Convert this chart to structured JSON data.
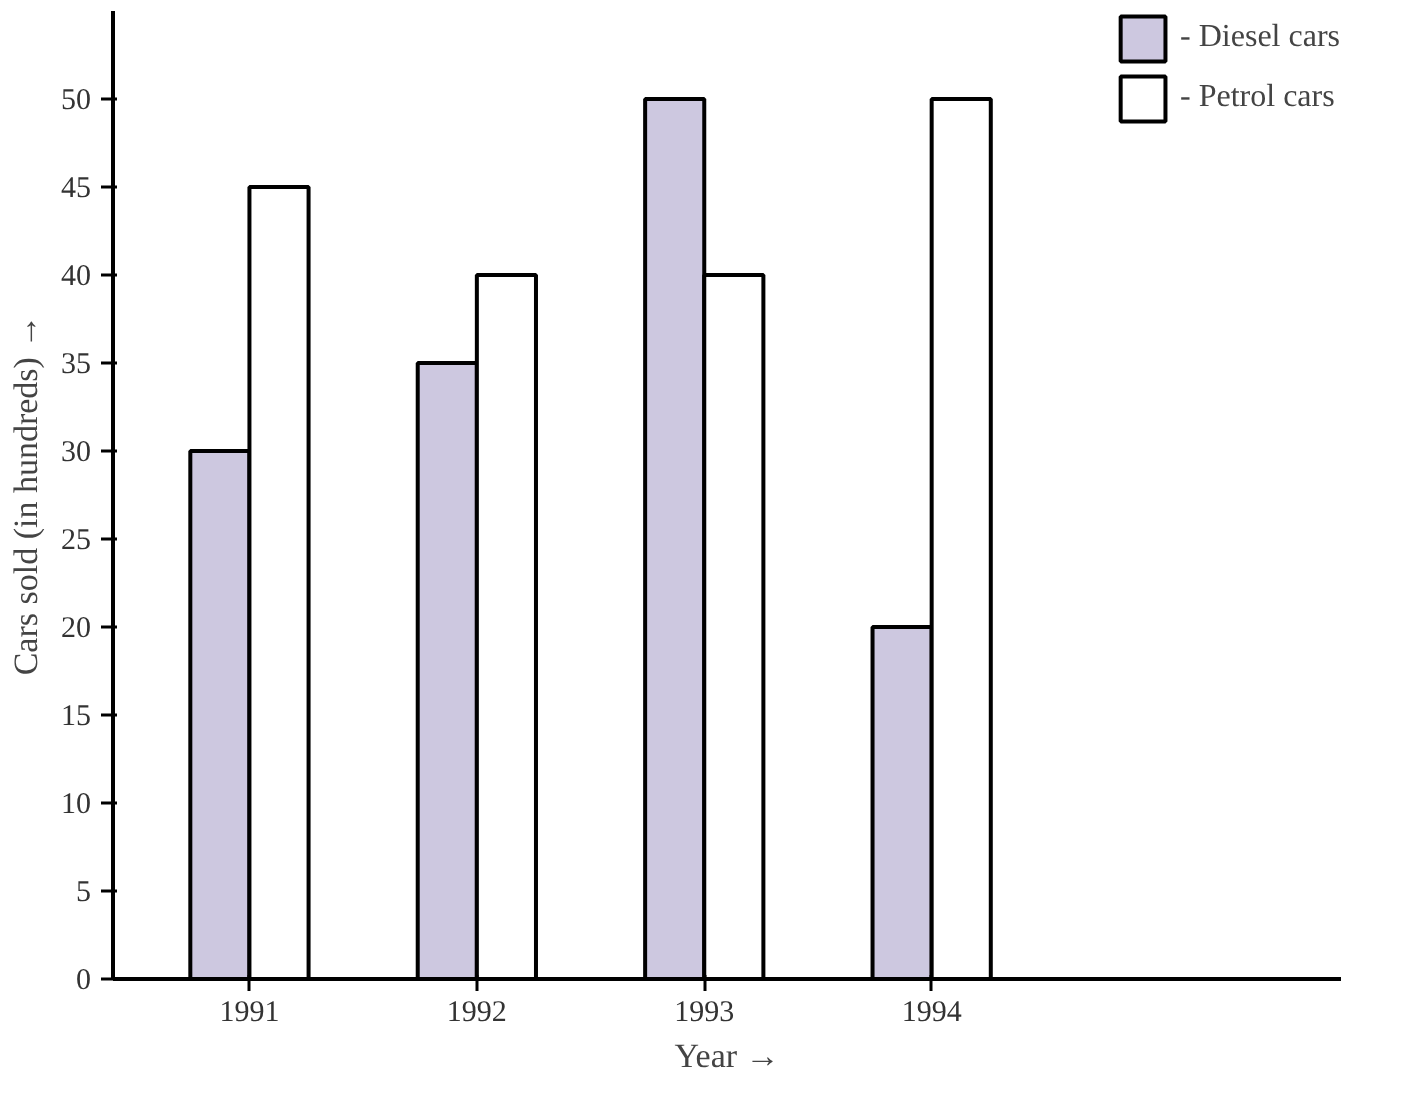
{
  "chart_data": {
    "type": "bar",
    "xlabel": "Year →",
    "ylabel": "Cars sold (in hundreds) →",
    "categories": [
      "1991",
      "1992",
      "1993",
      "1994"
    ],
    "series": [
      {
        "name": "- Diesel cars",
        "color": "#cdc8e0",
        "values": [
          30,
          35,
          50,
          20
        ]
      },
      {
        "name": "- Petrol cars",
        "color": "#ffffff",
        "values": [
          45,
          40,
          40,
          50
        ]
      }
    ],
    "ylim": [
      0,
      55
    ],
    "yticks": [
      0,
      5,
      10,
      15,
      20,
      25,
      30,
      35,
      40,
      45,
      50
    ],
    "grid": false,
    "legend": "top right"
  }
}
